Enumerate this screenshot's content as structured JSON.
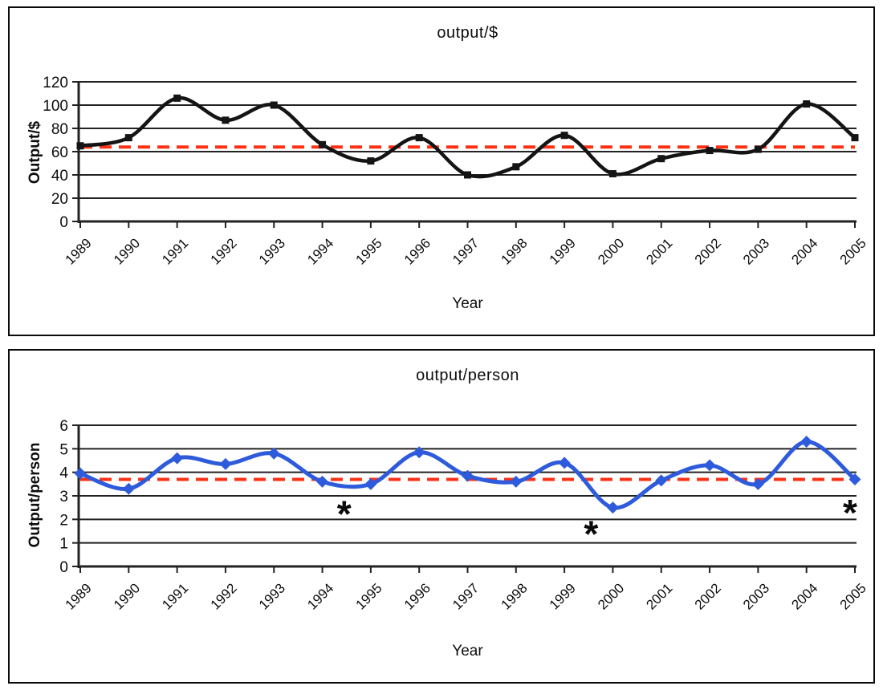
{
  "page": {
    "background_color": "#ffffff"
  },
  "chart_data": [
    {
      "type": "line",
      "title": "output/$",
      "xlabel": "Year",
      "ylabel": "Output/$",
      "categories": [
        "1989",
        "1990",
        "1991",
        "1992",
        "1993",
        "1994",
        "1995",
        "1996",
        "1997",
        "1998",
        "1999",
        "2000",
        "2001",
        "2002",
        "2003",
        "2004",
        "2005"
      ],
      "series": [
        {
          "name": "output/$",
          "values": [
            65,
            72,
            106,
            87,
            100,
            66,
            52,
            72,
            40,
            47,
            74,
            41,
            54,
            61,
            62,
            101,
            72
          ],
          "color": "#141414",
          "marker": "square",
          "smooth": true
        }
      ],
      "reference_line": {
        "value": 64,
        "color": "#ff3014",
        "style": "dashed"
      },
      "ylim": [
        0,
        120
      ],
      "yticks": [
        0,
        20,
        40,
        60,
        80,
        100,
        120
      ],
      "grid": true,
      "legend": "none",
      "annotations": []
    },
    {
      "type": "line",
      "title": "output/person",
      "xlabel": "Year",
      "ylabel": "Output/person",
      "categories": [
        "1989",
        "1990",
        "1991",
        "1992",
        "1993",
        "1994",
        "1995",
        "1996",
        "1997",
        "1998",
        "1999",
        "2000",
        "2001",
        "2002",
        "2003",
        "2004",
        "2005"
      ],
      "series": [
        {
          "name": "output/person",
          "values": [
            3.95,
            3.3,
            4.6,
            4.35,
            4.8,
            3.6,
            3.5,
            4.85,
            3.85,
            3.6,
            4.4,
            2.5,
            3.65,
            4.3,
            3.5,
            5.3,
            3.7
          ],
          "color": "#2e5bdb",
          "marker": "diamond",
          "smooth": true
        }
      ],
      "reference_line": {
        "value": 3.7,
        "color": "#ff3014",
        "style": "dashed"
      },
      "ylim": [
        0,
        6
      ],
      "yticks": [
        0,
        1,
        2,
        3,
        4,
        5,
        6
      ],
      "grid": true,
      "legend": "none",
      "annotations": [
        {
          "text": "*",
          "x_index": 5.45,
          "y": 2.4,
          "color": "#0a0a0a"
        },
        {
          "text": "*",
          "x_index": 10.55,
          "y": 1.55,
          "color": "#0a0a0a"
        },
        {
          "text": "*",
          "x_index": 15.9,
          "y": 2.45,
          "color": "#0a0a0a"
        }
      ]
    }
  ]
}
